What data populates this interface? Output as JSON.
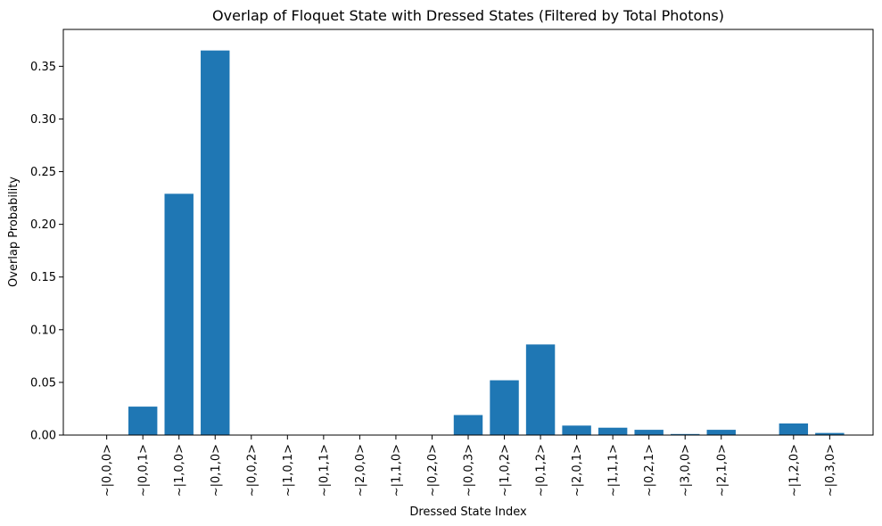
{
  "chart_data": {
    "type": "bar",
    "title": "Overlap of Floquet State with Dressed States (Filtered by Total Photons)",
    "xlabel": "Dressed State Index",
    "ylabel": "Overlap Probability",
    "ylim": [
      0,
      0.385
    ],
    "yticks": [
      "0.00",
      "0.05",
      "0.10",
      "0.15",
      "0.20",
      "0.25",
      "0.30",
      "0.35"
    ],
    "grid": false,
    "bar_color": "#1f77b4",
    "categories": [
      "~|0,0,0>",
      "~|0,0,1>",
      "~|1,0,0>",
      "~|0,1,0>",
      "~|0,0,2>",
      "~|1,0,1>",
      "~|0,1,1>",
      "~|2,0,0>",
      "~|1,1,0>",
      "~|0,2,0>",
      "~|0,0,3>",
      "~|1,0,2>",
      "~|0,1,2>",
      "~|2,0,1>",
      "~|1,1,1>",
      "~|0,2,1>",
      "~|3,0,0>",
      "~|2,1,0>",
      "~|1,2,0>",
      "~|0,3,0>"
    ],
    "x": [
      0,
      1,
      2,
      3,
      4,
      5,
      6,
      7,
      8,
      9,
      10,
      11,
      12,
      13,
      14,
      15,
      16,
      17,
      19,
      20
    ],
    "values": [
      0.0,
      0.027,
      0.229,
      0.365,
      0.0,
      0.0,
      0.0,
      0.0,
      0.0,
      0.0,
      0.019,
      0.052,
      0.086,
      0.009,
      0.007,
      0.005,
      0.001,
      0.005,
      0.011,
      0.002
    ]
  }
}
